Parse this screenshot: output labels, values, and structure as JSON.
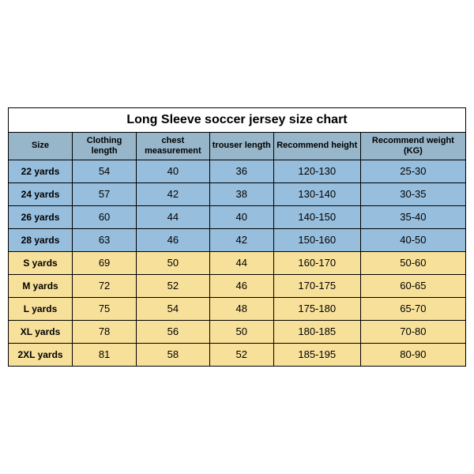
{
  "table": {
    "title": "Long Sleeve soccer jersey size chart",
    "columns": [
      "Size",
      "Clothing length",
      "chest measurement",
      "trouser length",
      "Recommend height",
      "Recommend weight (KG)"
    ],
    "col_widths_pct": [
      14,
      14,
      16,
      14,
      19,
      23
    ],
    "header_bg": "#97b6c9",
    "row_groups": [
      {
        "color": "#97bedd",
        "rows": [
          [
            "22 yards",
            "54",
            "40",
            "36",
            "120-130",
            "25-30"
          ],
          [
            "24 yards",
            "57",
            "42",
            "38",
            "130-140",
            "30-35"
          ],
          [
            "26 yards",
            "60",
            "44",
            "40",
            "140-150",
            "35-40"
          ],
          [
            "28 yards",
            "63",
            "46",
            "42",
            "150-160",
            "40-50"
          ]
        ]
      },
      {
        "color": "#f7e09a",
        "rows": [
          [
            "S yards",
            "69",
            "50",
            "44",
            "160-170",
            "50-60"
          ],
          [
            "M yards",
            "72",
            "52",
            "46",
            "170-175",
            "60-65"
          ],
          [
            "L yards",
            "75",
            "54",
            "48",
            "175-180",
            "65-70"
          ],
          [
            "XL yards",
            "78",
            "56",
            "50",
            "180-185",
            "70-80"
          ],
          [
            "2XL yards",
            "81",
            "58",
            "52",
            "185-195",
            "80-90"
          ]
        ]
      }
    ]
  },
  "body_bg": "#ffffff"
}
